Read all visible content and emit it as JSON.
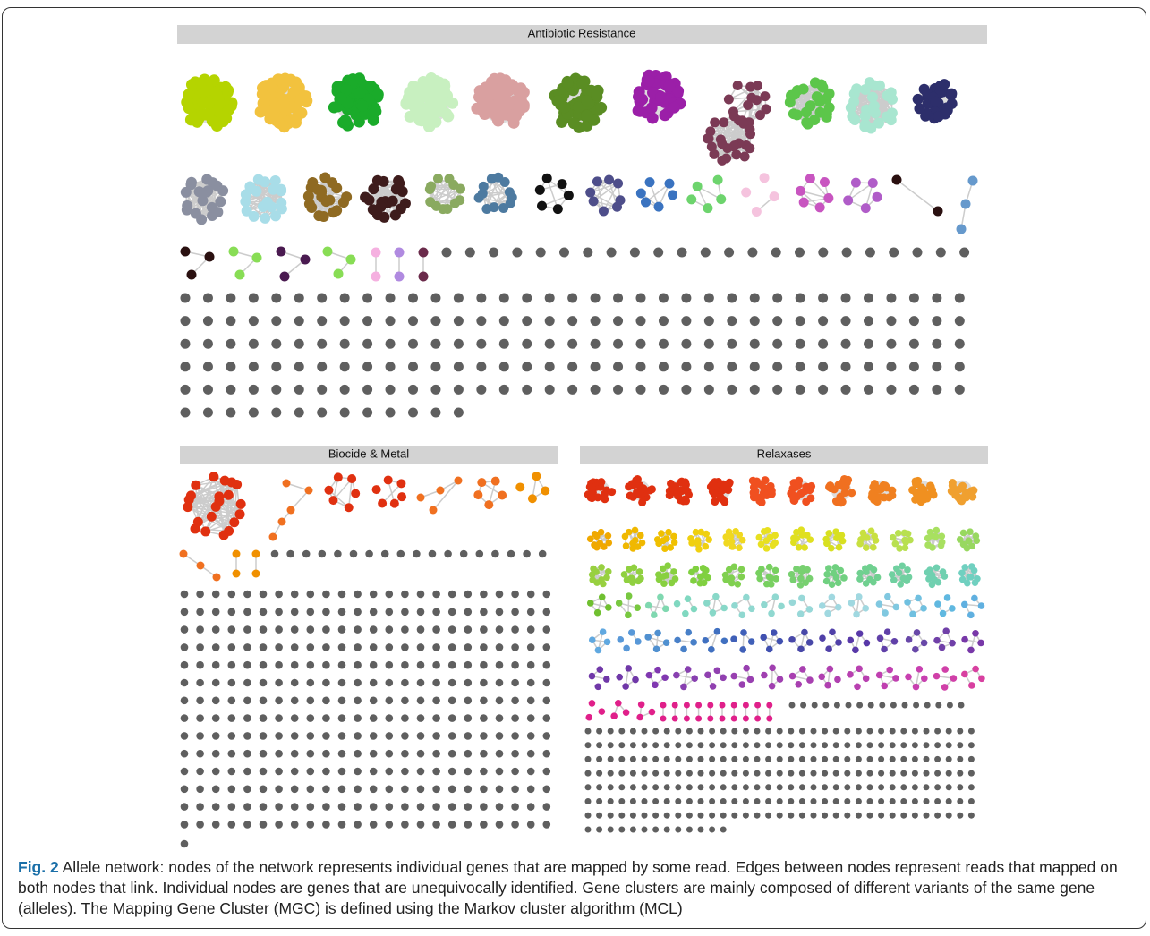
{
  "panels": [
    {
      "title": "Antibiotic Resistance"
    },
    {
      "title": "Biocide & Metal"
    },
    {
      "title": "Relaxases"
    }
  ],
  "caption": {
    "label": "Fig. 2",
    "text": "Allele network: nodes of the network represents individual genes that are mapped by some read. Edges between nodes represent reads that mapped on both nodes that link. Individual nodes are genes that are unequivocally identified. Gene clusters are mainly composed of different variants of the same gene (alleles). The Mapping Gene Cluster (MGC) is defined using the Markov cluster algorithm (MCL)"
  }
}
